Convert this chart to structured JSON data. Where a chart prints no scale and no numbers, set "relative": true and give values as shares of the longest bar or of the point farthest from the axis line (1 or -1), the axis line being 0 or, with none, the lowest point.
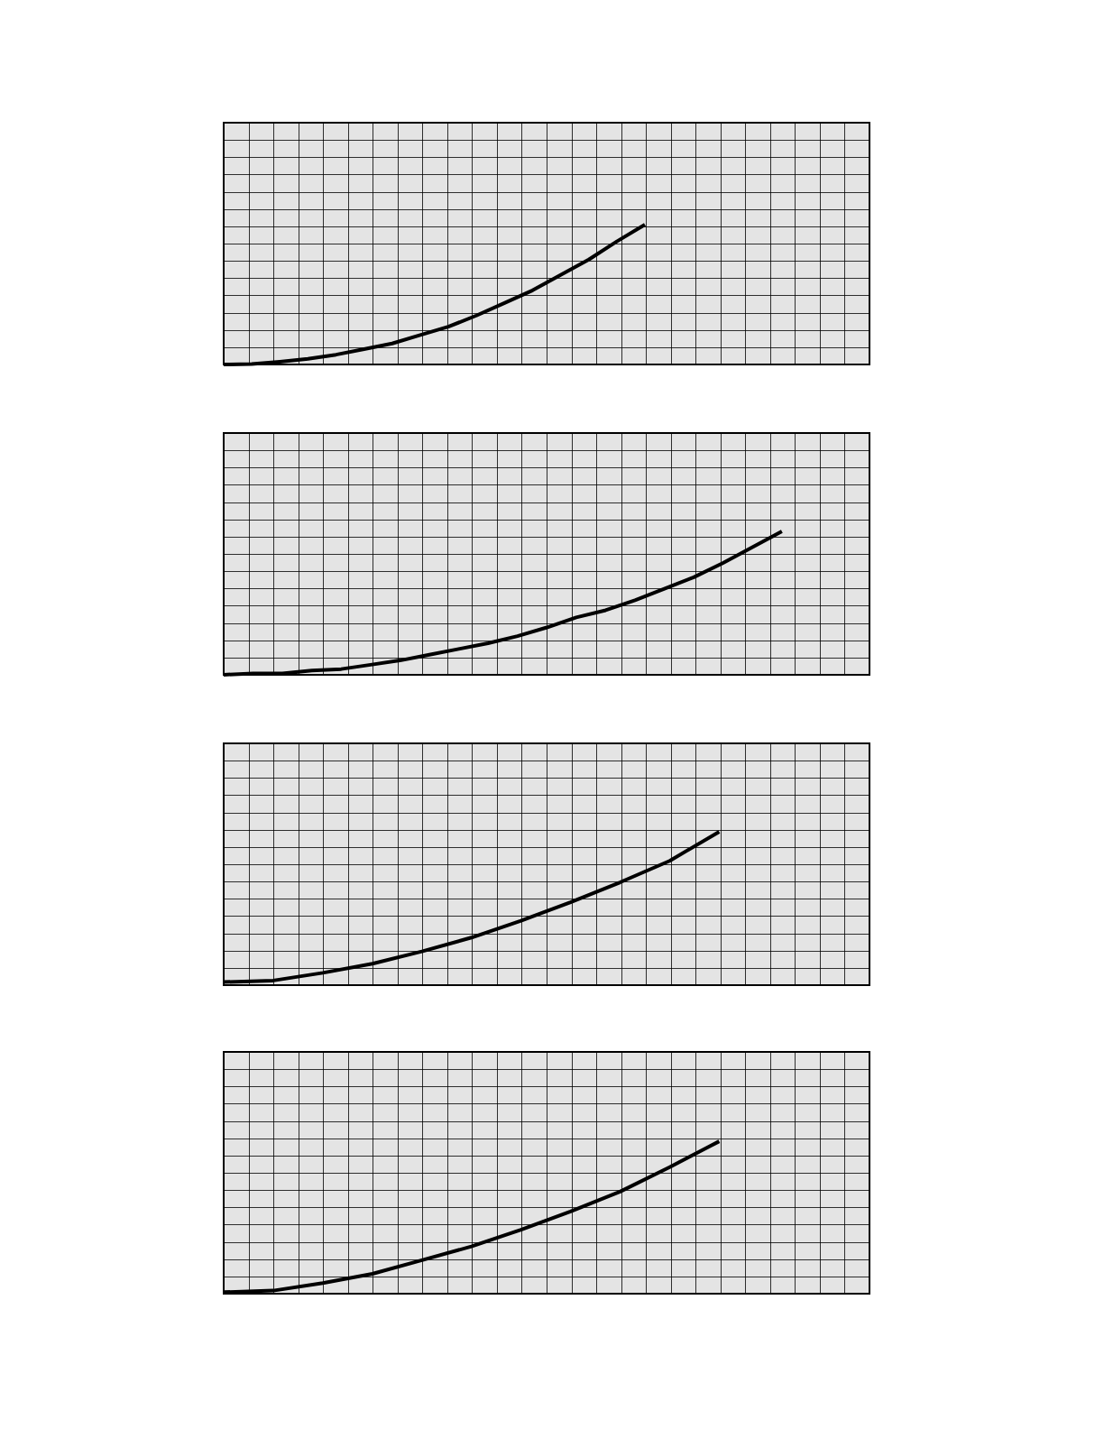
{
  "chart_data": [
    {
      "type": "line",
      "relative": true,
      "grid": true,
      "categories": [
        null,
        null,
        null,
        null,
        null,
        null,
        null,
        null,
        null,
        null,
        null,
        null,
        null,
        null,
        null,
        null
      ],
      "series": [
        {
          "color": "#000000",
          "values": [
            0,
            0.003,
            0.02,
            0.04,
            0.07,
            0.11,
            0.15,
            0.21,
            0.27,
            0.35,
            0.44,
            0.53,
            0.64,
            0.75,
            0.88,
            1
          ]
        }
      ]
    },
    {
      "type": "line",
      "relative": true,
      "grid": true,
      "categories": [
        null,
        null,
        null,
        null,
        null,
        null,
        null,
        null,
        null,
        null,
        null,
        null,
        null,
        null,
        null,
        null,
        null,
        null,
        null,
        null
      ],
      "series": [
        {
          "color": "#000000",
          "values": [
            0,
            0.01,
            0.01,
            0.03,
            0.04,
            0.07,
            0.1,
            0.14,
            0.18,
            0.22,
            0.27,
            0.33,
            0.4,
            0.45,
            0.52,
            0.6,
            0.68,
            0.78,
            0.89,
            1
          ]
        }
      ]
    },
    {
      "type": "line",
      "relative": true,
      "grid": true,
      "categories": [
        null,
        null,
        null,
        null,
        null,
        null,
        null,
        null,
        null,
        null,
        null
      ],
      "series": [
        {
          "color": "#000000",
          "values": [
            0.02,
            0.03,
            0.08,
            0.14,
            0.22,
            0.31,
            0.42,
            0.54,
            0.67,
            0.81,
            1
          ]
        }
      ]
    },
    {
      "type": "line",
      "relative": true,
      "grid": true,
      "categories": [
        null,
        null,
        null,
        null,
        null,
        null,
        null,
        null,
        null,
        null,
        null
      ],
      "series": [
        {
          "color": "#000000",
          "values": [
            0.01,
            0.02,
            0.07,
            0.13,
            0.22,
            0.31,
            0.42,
            0.54,
            0.67,
            0.83,
            1
          ]
        }
      ]
    }
  ]
}
